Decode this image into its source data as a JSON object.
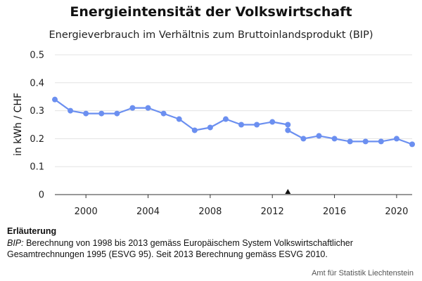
{
  "header": {
    "title": "Energieintensität der Volkswirtschaft",
    "subtitle": "Energieverbrauch im Verhältnis zum Bruttoinlandsprodukt (BIP)"
  },
  "chart_data": {
    "type": "line",
    "title": "Energieintensität der Volkswirtschaft",
    "subtitle": "Energieverbrauch im Verhältnis zum Bruttoinlandsprodukt (BIP)",
    "xlabel": "",
    "ylabel": "in kWh / CHF",
    "xlim": [
      1998,
      2021
    ],
    "ylim": [
      0,
      0.5
    ],
    "x_ticks": [
      2000,
      2004,
      2008,
      2012,
      2016,
      2020
    ],
    "y_ticks": [
      0,
      0.1,
      0.2,
      0.3,
      0.4,
      0.5
    ],
    "y_tick_labels": [
      "0",
      "0.1",
      "0.2",
      "0.3",
      "0.4",
      "0.5"
    ],
    "grid": "horizontal",
    "color": "#6b8ff0",
    "series": [
      {
        "x": [
          1998,
          1999,
          2000,
          2001,
          2002,
          2003,
          2004,
          2005,
          2006,
          2007,
          2008,
          2009,
          2010,
          2011,
          2012,
          2013
        ],
        "values": [
          0.34,
          0.3,
          0.29,
          0.29,
          0.29,
          0.31,
          0.31,
          0.29,
          0.27,
          0.23,
          0.24,
          0.27,
          0.25,
          0.25,
          0.26,
          0.25
        ]
      },
      {
        "x": [
          2013,
          2014,
          2015,
          2016,
          2017,
          2018,
          2019,
          2020,
          2021
        ],
        "values": [
          0.23,
          0.2,
          0.21,
          0.2,
          0.19,
          0.19,
          0.19,
          0.2,
          0.18
        ]
      }
    ],
    "marker": {
      "x": 2013,
      "symbol": "triangle-up"
    }
  },
  "notes": {
    "heading": "Erläuterung",
    "term": "BIP:",
    "text": " Berechnung von 1998 bis 2013 gemäss Europäischem System Volkswirtschaftlicher Gesamtrechnungen 1995 (ESVG 95). Seit 2013 Berechnung gemäss ESVG 2010."
  },
  "source": "Amt für Statistik Liechtenstein"
}
